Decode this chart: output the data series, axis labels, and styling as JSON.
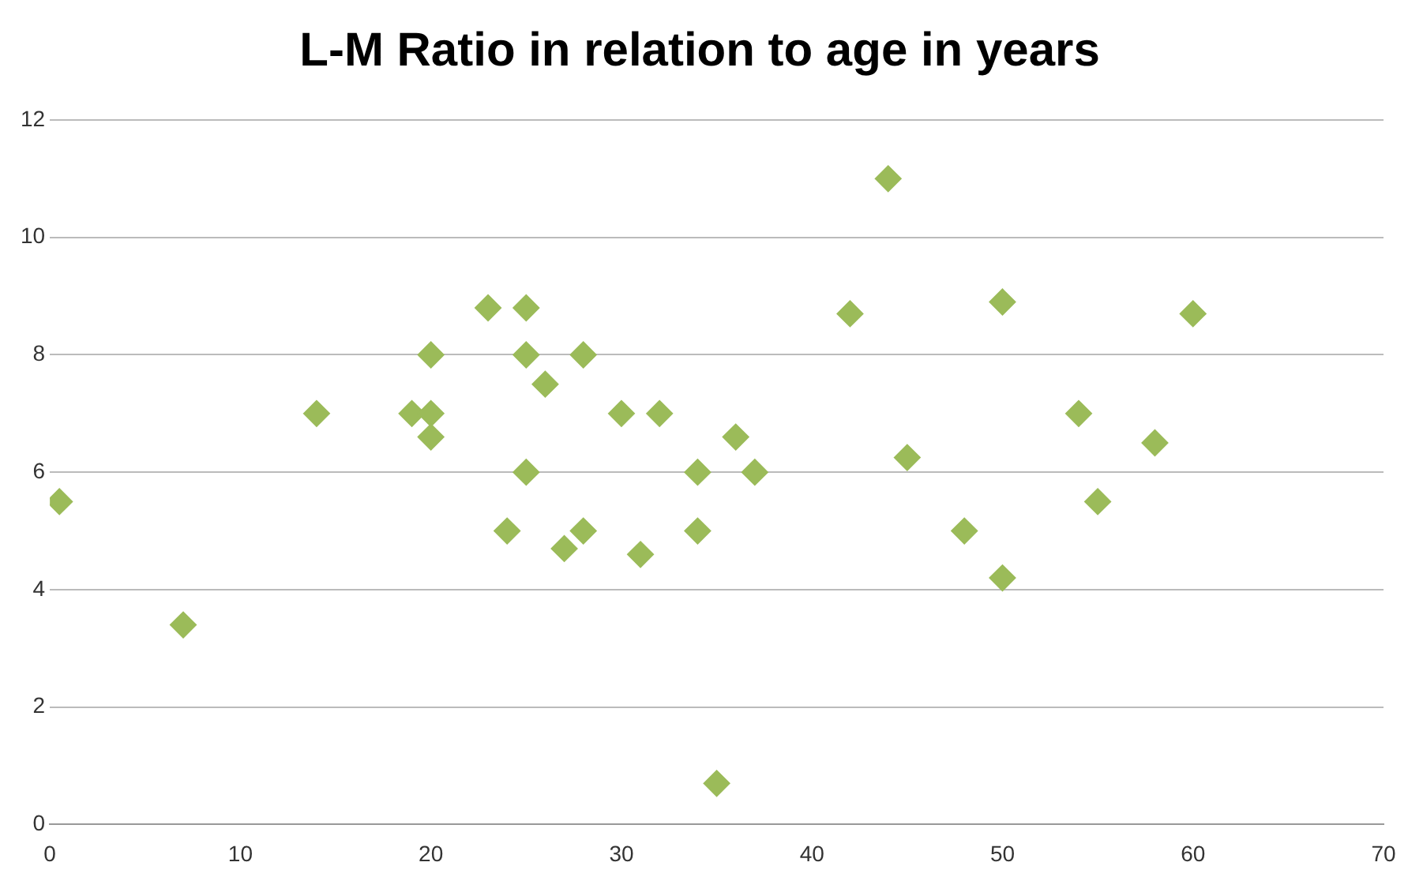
{
  "chart_data": {
    "type": "scatter",
    "title": "L-M Ratio in relation to age in years",
    "x": [
      0.5,
      7,
      14,
      19,
      20,
      20,
      20,
      23,
      24,
      25,
      25,
      25,
      26,
      27,
      28,
      28,
      30,
      31,
      32,
      34,
      34,
      35,
      36,
      37,
      42,
      44,
      45,
      48,
      50,
      50,
      54,
      55,
      58,
      60
    ],
    "values": [
      5.5,
      3.4,
      7,
      7,
      7,
      8,
      6.6,
      8.8,
      5,
      8.8,
      8,
      6,
      7.5,
      4.7,
      5,
      8,
      7,
      4.6,
      7,
      6,
      5,
      0.7,
      6.6,
      6,
      8.7,
      11,
      6.25,
      5,
      8.9,
      4.2,
      7,
      5.5,
      6.5,
      8.7
    ],
    "color": "#9bbb59",
    "marker": "diamond",
    "xlim": [
      0,
      70
    ],
    "xticks": [
      0,
      10,
      20,
      30,
      40,
      50,
      60,
      70
    ],
    "ylim": [
      0,
      12
    ],
    "yticks": [
      0,
      2,
      4,
      6,
      8,
      10,
      12
    ],
    "grid": "y",
    "legend": false
  }
}
